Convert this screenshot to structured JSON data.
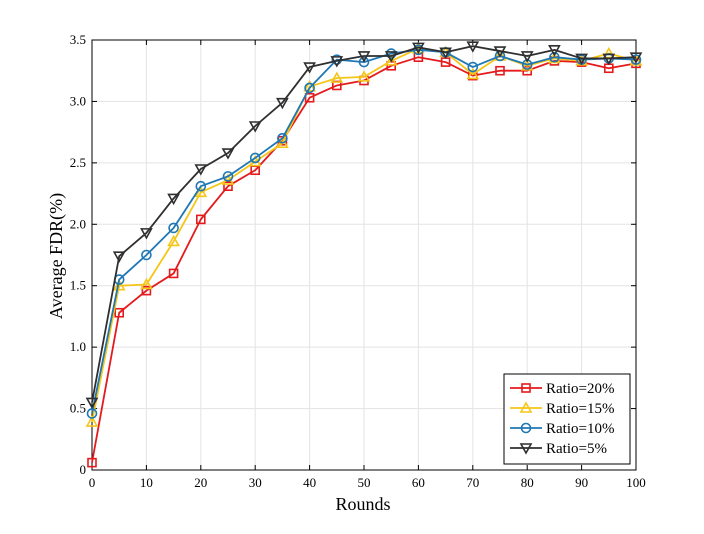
{
  "chart_data": {
    "type": "line",
    "title": "",
    "xlabel": "Rounds",
    "ylabel": "Average FDR(%)",
    "xlim": [
      0,
      100
    ],
    "ylim": [
      0,
      3.5
    ],
    "xticks": [
      0,
      10,
      20,
      30,
      40,
      50,
      60,
      70,
      80,
      90,
      100
    ],
    "yticks": [
      0,
      0.5,
      1.0,
      1.5,
      2.0,
      2.5,
      3.0,
      3.5
    ],
    "xtick_labels": [
      "0",
      "10",
      "20",
      "30",
      "40",
      "50",
      "60",
      "70",
      "80",
      "90",
      "100"
    ],
    "ytick_labels": [
      "0",
      "0.5",
      "1.0",
      "1.5",
      "2.0",
      "2.5",
      "3.0",
      "3.5"
    ],
    "grid": true,
    "legend_position": "bottom-right",
    "x": [
      0,
      5,
      10,
      15,
      20,
      25,
      30,
      35,
      40,
      45,
      50,
      55,
      60,
      65,
      70,
      75,
      80,
      85,
      90,
      95,
      100
    ],
    "series": [
      {
        "name": "Ratio=20%",
        "color": "#e41a1c",
        "marker": "square",
        "values": [
          0.06,
          1.28,
          1.46,
          1.6,
          2.04,
          2.31,
          2.44,
          2.68,
          3.03,
          3.13,
          3.17,
          3.29,
          3.36,
          3.32,
          3.21,
          3.25,
          3.25,
          3.33,
          3.32,
          3.27,
          3.31
        ]
      },
      {
        "name": "Ratio=15%",
        "color": "#f5c518",
        "marker": "triangle-up",
        "values": [
          0.39,
          1.5,
          1.51,
          1.86,
          2.26,
          2.36,
          2.51,
          2.66,
          3.12,
          3.19,
          3.2,
          3.33,
          3.43,
          3.4,
          3.22,
          3.37,
          3.29,
          3.35,
          3.33,
          3.39,
          3.33
        ]
      },
      {
        "name": "Ratio=10%",
        "color": "#1f77b4",
        "marker": "circle",
        "values": [
          0.46,
          1.55,
          1.75,
          1.97,
          2.31,
          2.39,
          2.54,
          2.7,
          3.11,
          3.34,
          3.32,
          3.39,
          3.42,
          3.4,
          3.28,
          3.37,
          3.3,
          3.36,
          3.34,
          3.35,
          3.34
        ]
      },
      {
        "name": "Ratio=5%",
        "color": "#2f2f2f",
        "marker": "triangle-down",
        "values": [
          0.55,
          1.74,
          1.93,
          2.21,
          2.45,
          2.58,
          2.8,
          2.99,
          3.28,
          3.33,
          3.37,
          3.37,
          3.44,
          3.4,
          3.45,
          3.41,
          3.37,
          3.42,
          3.35,
          3.35,
          3.36
        ]
      }
    ]
  }
}
